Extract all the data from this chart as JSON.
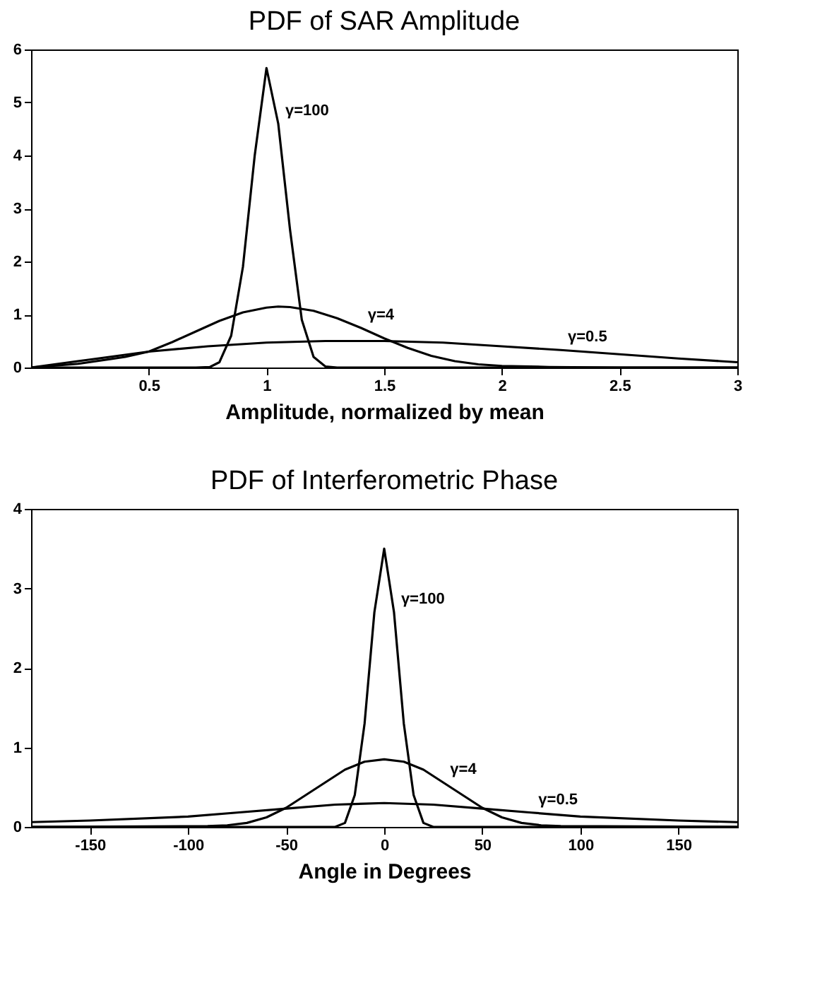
{
  "chart_data": [
    {
      "type": "line",
      "title": "PDF of SAR Amplitude",
      "xlabel": "Amplitude, normalized by mean",
      "xlim": [
        0,
        3
      ],
      "xticks": [
        0.5,
        1,
        1.5,
        2,
        2.5,
        3
      ],
      "ylim": [
        0,
        6
      ],
      "yticks": [
        0,
        1,
        2,
        3,
        4,
        5,
        6
      ],
      "grid": false,
      "series": [
        {
          "name": "γ=100",
          "color": "#000000",
          "x": [
            0,
            0.7,
            0.76,
            0.8,
            0.85,
            0.9,
            0.95,
            1.0,
            1.05,
            1.1,
            1.15,
            1.2,
            1.25,
            1.3,
            3
          ],
          "values": [
            0,
            0,
            0.01,
            0.1,
            0.6,
            1.9,
            4.0,
            5.65,
            4.6,
            2.6,
            0.9,
            0.2,
            0.02,
            0,
            0
          ]
        },
        {
          "name": "γ=4",
          "color": "#000000",
          "x": [
            0,
            0.2,
            0.4,
            0.5,
            0.6,
            0.7,
            0.8,
            0.9,
            1.0,
            1.05,
            1.1,
            1.2,
            1.3,
            1.4,
            1.5,
            1.6,
            1.7,
            1.8,
            1.9,
            2.0,
            2.2,
            2.5,
            3
          ],
          "values": [
            0,
            0.07,
            0.2,
            0.3,
            0.48,
            0.68,
            0.88,
            1.04,
            1.13,
            1.15,
            1.14,
            1.07,
            0.93,
            0.75,
            0.55,
            0.37,
            0.22,
            0.12,
            0.06,
            0.03,
            0.01,
            0,
            0
          ]
        },
        {
          "name": "γ=0.5",
          "color": "#000000",
          "x": [
            0,
            0.25,
            0.5,
            0.75,
            1.0,
            1.25,
            1.5,
            1.75,
            2.0,
            2.25,
            2.5,
            2.75,
            3.0
          ],
          "values": [
            0,
            0.15,
            0.3,
            0.4,
            0.47,
            0.5,
            0.5,
            0.47,
            0.4,
            0.33,
            0.25,
            0.17,
            0.1
          ]
        }
      ]
    },
    {
      "type": "line",
      "title": "PDF of Interferometric Phase",
      "xlabel": "Angle in Degrees",
      "xlim": [
        -180,
        180
      ],
      "xticks": [
        -150,
        -100,
        -50,
        0,
        50,
        100,
        150
      ],
      "ylim": [
        0,
        4
      ],
      "yticks": [
        0,
        1,
        2,
        3,
        4
      ],
      "grid": false,
      "series": [
        {
          "name": "γ=100",
          "color": "#000000",
          "x": [
            -180,
            -25,
            -20,
            -15,
            -10,
            -5,
            0,
            5,
            10,
            15,
            20,
            25,
            180
          ],
          "values": [
            0,
            0,
            0.05,
            0.4,
            1.3,
            2.7,
            3.5,
            2.7,
            1.3,
            0.4,
            0.05,
            0,
            0
          ]
        },
        {
          "name": "γ=4",
          "color": "#000000",
          "x": [
            -180,
            -90,
            -80,
            -70,
            -60,
            -50,
            -40,
            -30,
            -20,
            -10,
            0,
            10,
            20,
            30,
            40,
            50,
            60,
            70,
            80,
            90,
            180
          ],
          "values": [
            0,
            0.01,
            0.02,
            0.05,
            0.12,
            0.24,
            0.4,
            0.56,
            0.72,
            0.82,
            0.85,
            0.82,
            0.72,
            0.56,
            0.4,
            0.24,
            0.12,
            0.05,
            0.02,
            0.01,
            0
          ]
        },
        {
          "name": "γ=0.5",
          "color": "#000000",
          "x": [
            -180,
            -150,
            -100,
            -75,
            -50,
            -25,
            0,
            25,
            50,
            75,
            100,
            150,
            180
          ],
          "values": [
            0.06,
            0.08,
            0.13,
            0.18,
            0.23,
            0.28,
            0.3,
            0.28,
            0.23,
            0.18,
            0.13,
            0.08,
            0.06
          ]
        }
      ]
    }
  ]
}
